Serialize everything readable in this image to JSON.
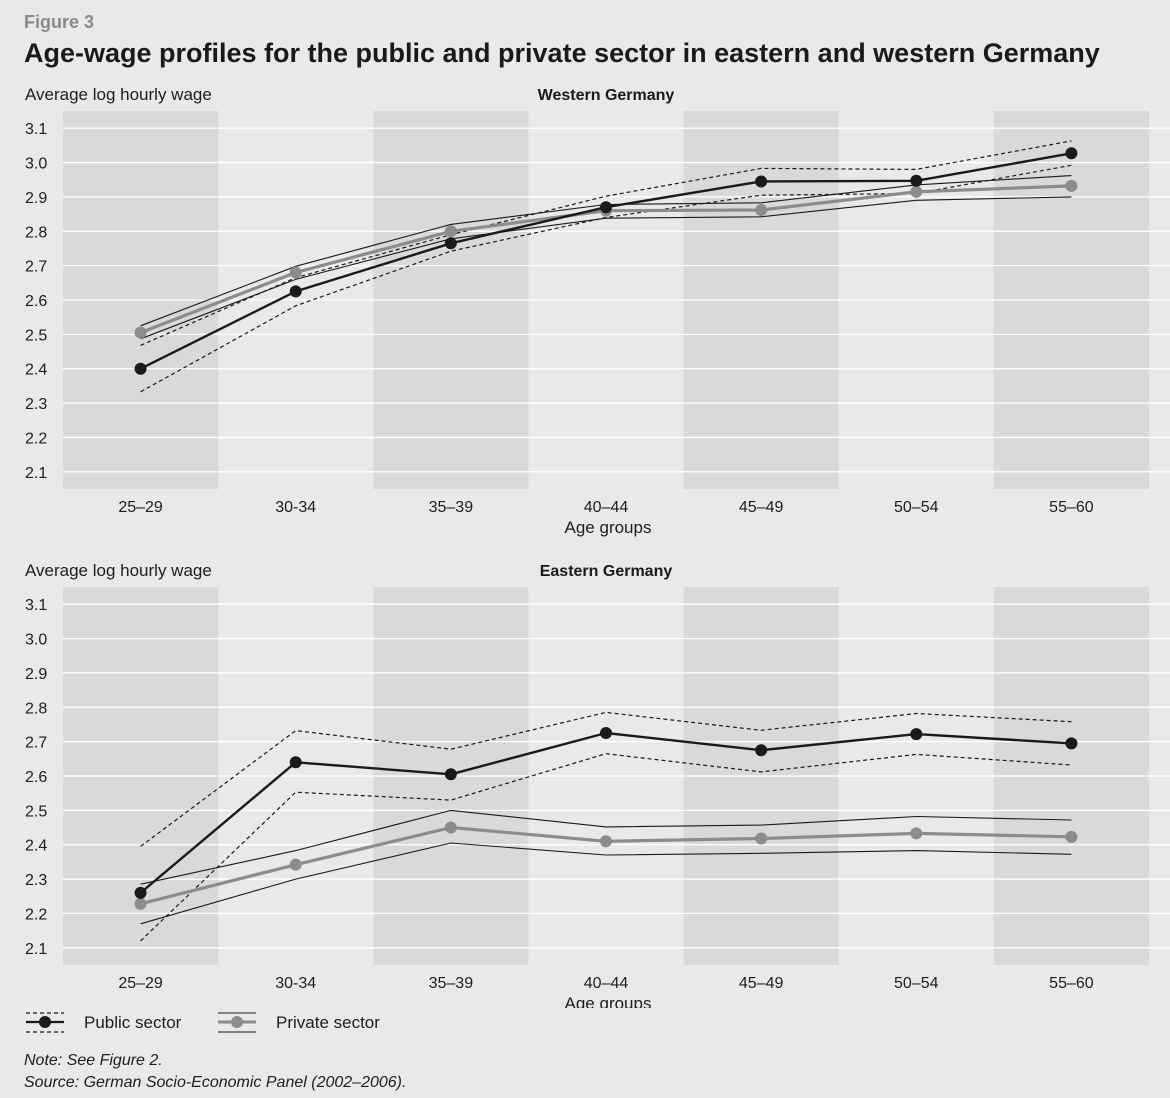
{
  "figure": {
    "label": "Figure 3",
    "title": "Age-wage profiles for the public and private sector in eastern and western Germany",
    "note": "Note: See Figure 2.",
    "source": "Source: German Socio-Economic Panel (2002–2006)."
  },
  "legend": {
    "public_label": "Public sector",
    "private_label": "Private sector"
  },
  "colors": {
    "public": "#1a1a1a",
    "private": "#8c8c8c",
    "band_shade": "#d9d9db",
    "background": "#e9e9eb",
    "gridline": "#ffffff"
  },
  "chart_data": [
    {
      "type": "line",
      "title": "Western Germany",
      "ylabel": "Average log hourly wage",
      "xlabel": "Age groups",
      "categories": [
        "25–29",
        "30-34",
        "35–39",
        "40–44",
        "45–49",
        "50–54",
        "55–60"
      ],
      "ylim": [
        2.05,
        3.15
      ],
      "yticks": [
        "2.1",
        "2.2",
        "2.3",
        "2.4",
        "2.5",
        "2.6",
        "2.7",
        "2.8",
        "2.9",
        "3.0",
        "3.1"
      ],
      "grid": true,
      "shaded_categories": [
        0,
        2,
        4,
        6
      ],
      "series": [
        {
          "name": "Public sector",
          "values": [
            2.4,
            2.625,
            2.765,
            2.87,
            2.945,
            2.947,
            3.027
          ],
          "lower": [
            2.333,
            2.583,
            2.742,
            2.84,
            2.905,
            2.91,
            2.992
          ],
          "upper": [
            2.468,
            2.665,
            2.79,
            2.902,
            2.983,
            2.98,
            3.063
          ]
        },
        {
          "name": "Private sector",
          "values": [
            2.505,
            2.68,
            2.8,
            2.86,
            2.862,
            2.915,
            2.932
          ],
          "lower": [
            2.487,
            2.66,
            2.778,
            2.838,
            2.842,
            2.89,
            2.9
          ],
          "upper": [
            2.525,
            2.698,
            2.82,
            2.878,
            2.883,
            2.935,
            2.962
          ]
        }
      ]
    },
    {
      "type": "line",
      "title": "Eastern Germany",
      "ylabel": "Average log hourly wage",
      "xlabel": "Age groups",
      "categories": [
        "25–29",
        "30-34",
        "35–39",
        "40–44",
        "45–49",
        "50–54",
        "55–60"
      ],
      "ylim": [
        2.05,
        3.15
      ],
      "yticks": [
        "2.1",
        "2.2",
        "2.3",
        "2.4",
        "2.5",
        "2.6",
        "2.7",
        "2.8",
        "2.9",
        "3.0",
        "3.1"
      ],
      "grid": true,
      "shaded_categories": [
        0,
        2,
        4,
        6
      ],
      "series": [
        {
          "name": "Public sector",
          "values": [
            2.26,
            2.64,
            2.605,
            2.725,
            2.675,
            2.722,
            2.695
          ],
          "lower": [
            2.12,
            2.553,
            2.53,
            2.665,
            2.612,
            2.663,
            2.632
          ],
          "upper": [
            2.395,
            2.732,
            2.678,
            2.785,
            2.733,
            2.782,
            2.758
          ]
        },
        {
          "name": "Private sector",
          "values": [
            2.228,
            2.342,
            2.45,
            2.41,
            2.418,
            2.433,
            2.423
          ],
          "lower": [
            2.17,
            2.3,
            2.405,
            2.37,
            2.375,
            2.383,
            2.372
          ],
          "upper": [
            2.285,
            2.383,
            2.5,
            2.452,
            2.457,
            2.482,
            2.472
          ]
        }
      ]
    }
  ]
}
